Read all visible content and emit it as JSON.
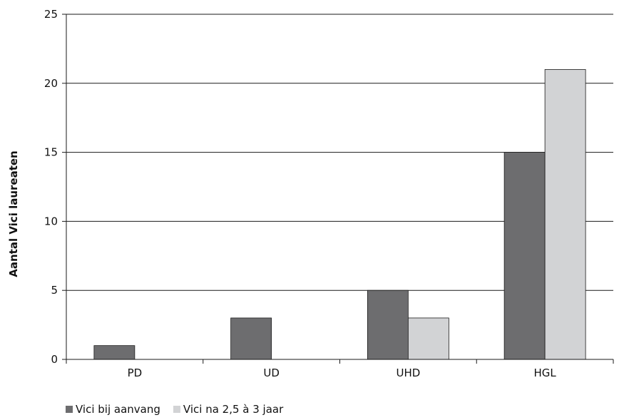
{
  "chart_data": {
    "type": "bar",
    "title": "",
    "xlabel": "",
    "ylabel": "Aantal Vici laureaten",
    "categories": [
      "PD",
      "UD",
      "UHD",
      "HGL"
    ],
    "series": [
      {
        "name": "Vici bij aanvang",
        "values": [
          1,
          3,
          5,
          15
        ],
        "color": "#6d6d6f"
      },
      {
        "name": "Vici na 2,5 à 3 jaar",
        "values": [
          0,
          0,
          3,
          21
        ],
        "color": "#d2d3d5"
      }
    ],
    "ylim": [
      0,
      25
    ],
    "yticks": [
      0,
      5,
      10,
      15,
      20,
      25
    ],
    "grid": true,
    "legend_position": "bottom-left"
  }
}
